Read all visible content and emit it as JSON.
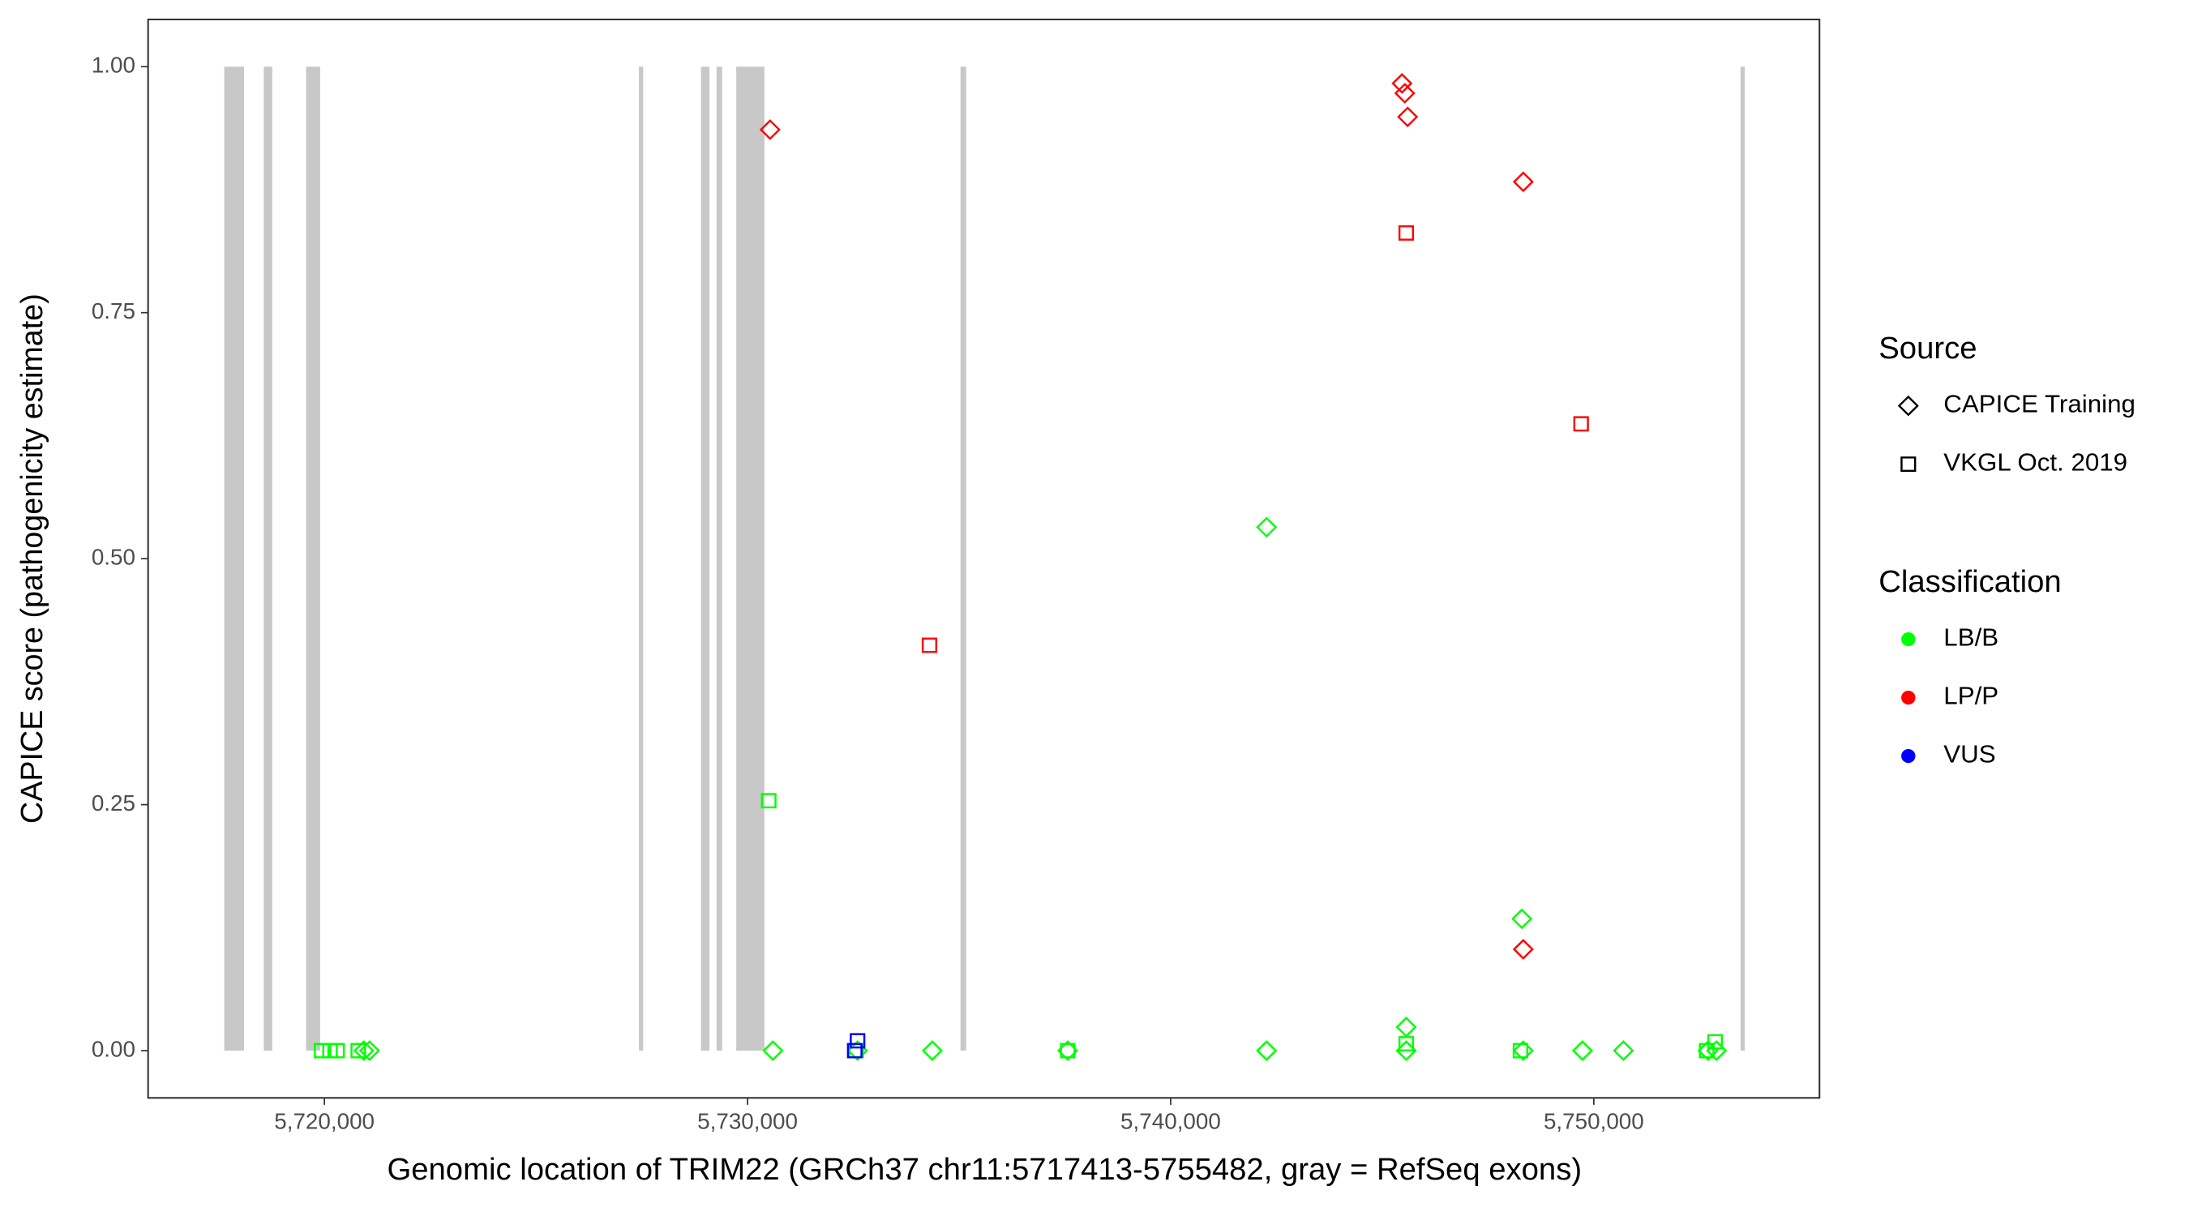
{
  "chart_data": {
    "type": "scatter",
    "x_label": "Genomic location of TRIM22 (GRCh37 chr11:5717413-5755482, gray = RefSeq exons)",
    "y_label": "CAPICE score (pathogenicity estimate)",
    "xlim": [
      5715833,
      5755333
    ],
    "ylim": [
      -0.048,
      1.048
    ],
    "xticks": [
      {
        "value": 5720000,
        "label": "5,720,000"
      },
      {
        "value": 5730000,
        "label": "5,730,000"
      },
      {
        "value": 5740000,
        "label": "5,740,000"
      },
      {
        "value": 5750000,
        "label": "5,750,000"
      }
    ],
    "yticks": [
      {
        "value": 0,
        "label": "0.00"
      },
      {
        "value": 0.25,
        "label": "0.25"
      },
      {
        "value": 0.5,
        "label": "0.50"
      },
      {
        "value": 0.75,
        "label": "0.75"
      },
      {
        "value": 1,
        "label": "1.00"
      }
    ],
    "exon_color": "#c8c8c8",
    "exons": [
      [
        5717633,
        5718100
      ],
      [
        5718567,
        5718767
      ],
      [
        5719567,
        5719900
      ],
      [
        5727433,
        5727533
      ],
      [
        5728900,
        5729100
      ],
      [
        5729267,
        5729400
      ],
      [
        5729733,
        5730400
      ],
      [
        5735033,
        5735167
      ],
      [
        5753467,
        5753567
      ]
    ],
    "shape_legend": {
      "title": "Source",
      "items": [
        {
          "name": "CAPICE Training",
          "shape": "diamond"
        },
        {
          "name": "VKGL Oct. 2019",
          "shape": "square"
        }
      ]
    },
    "color_legend": {
      "title": "Classification",
      "items": [
        {
          "name": "LB/B",
          "color": "#00ff00"
        },
        {
          "name": "LP/P",
          "color": "#ff0000"
        },
        {
          "name": "VUS",
          "color": "#0000ff"
        }
      ]
    },
    "series": [
      {
        "source": "CAPICE Training",
        "classification": "LP/P",
        "x": [
          5730533,
          5745467,
          5745533,
          5745600,
          5748333,
          5748333
        ],
        "y": [
          0.936,
          0.983,
          0.973,
          0.949,
          0.883,
          0.103
        ]
      },
      {
        "source": "VKGL Oct. 2019",
        "classification": "LP/P",
        "x": [
          5745567,
          5734300,
          5749700
        ],
        "y": [
          0.831,
          0.412,
          0.637
        ]
      },
      {
        "source": "CAPICE Training",
        "classification": "LB/B",
        "x": [
          5742267,
          5748300,
          5745567,
          5730600,
          5734367,
          5737567,
          5742267,
          5745567,
          5748333,
          5749733,
          5750700,
          5752700,
          5752900,
          5732600,
          5721067,
          5720933
        ],
        "y": [
          0.532,
          0.134,
          0.024,
          0,
          0,
          0,
          0,
          0,
          0,
          0,
          0,
          0,
          0,
          0,
          0,
          0
        ]
      },
      {
        "source": "VKGL Oct. 2019",
        "classification": "LB/B",
        "x": [
          5730500,
          5745567,
          5719933,
          5720133,
          5720300,
          5720800,
          5732567,
          5737567,
          5748267,
          5752867,
          5752667
        ],
        "y": [
          0.254,
          0.007,
          0,
          0,
          0,
          0,
          0,
          0,
          0,
          0.009,
          0
        ]
      },
      {
        "source": "VKGL Oct. 2019",
        "classification": "VUS",
        "x": [
          5732600,
          5732533
        ],
        "y": [
          0.01,
          0
        ]
      }
    ]
  }
}
